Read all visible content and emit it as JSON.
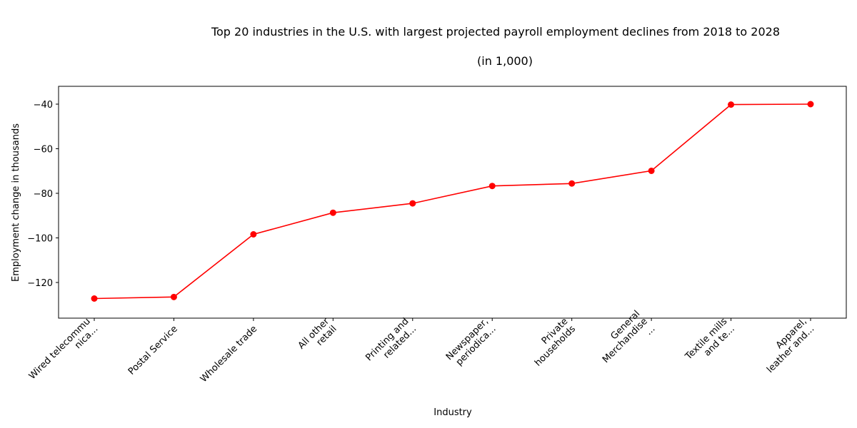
{
  "chart_data": {
    "type": "line",
    "title": "Top 20 industries in the U.S. with largest projected payroll employment declines from 2018 to 2028",
    "subtitle": "(in 1,000)",
    "xlabel": "Industry",
    "ylabel": "Employment change in thousands",
    "categories": [
      [
        "Wired telecommu",
        "nica..."
      ],
      [
        "Postal Service"
      ],
      [
        "Wholesale trade"
      ],
      [
        "All other",
        "retail"
      ],
      [
        "Printing and",
        "related..."
      ],
      [
        "Newspaper,",
        "periodica..."
      ],
      [
        "Private",
        "households"
      ],
      [
        "General",
        "Merchandise",
        "..."
      ],
      [
        "Textile mills",
        "and te..."
      ],
      [
        "Apparel,",
        "leather and..."
      ]
    ],
    "values": [
      -127.2,
      -126.5,
      -98.4,
      -88.7,
      -84.5,
      -76.7,
      -75.6,
      -69.9,
      -40.2,
      -40.0
    ],
    "yticks": [
      -40,
      -60,
      -80,
      -100,
      -120
    ],
    "ylim": [
      -136,
      -32
    ],
    "grid": false,
    "series_color": "#ff0000"
  }
}
